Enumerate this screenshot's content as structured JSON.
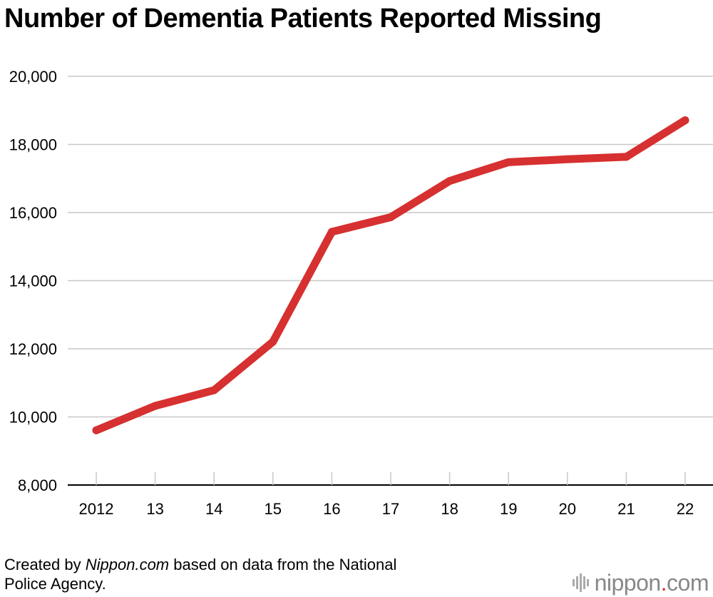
{
  "title": "Number of Dementia Patients Reported Missing",
  "source": {
    "prefix": "Created by ",
    "site": "Nippon.com",
    "suffix": " based on data from the National",
    "line2": "Police Agency."
  },
  "logo": {
    "left": "nippon",
    "dot": ".",
    "right": "com"
  },
  "colors": {
    "line": "#d63030",
    "grid": "#c8c8c8",
    "axis": "#000000"
  },
  "chart_data": {
    "type": "line",
    "title": "Number of Dementia Patients Reported Missing",
    "xlabel": "",
    "ylabel": "",
    "categories": [
      "2012",
      "13",
      "14",
      "15",
      "16",
      "17",
      "18",
      "19",
      "20",
      "21",
      "22"
    ],
    "series": [
      {
        "name": "Dementia patients reported missing",
        "values": [
          9607,
          10322,
          10783,
          12208,
          15432,
          15863,
          16927,
          17479,
          17565,
          17636,
          18709
        ]
      }
    ],
    "ylim": [
      8000,
      20000
    ],
    "yticks": [
      8000,
      10000,
      12000,
      14000,
      16000,
      18000,
      20000
    ],
    "ytick_labels": [
      "8,000",
      "10,000",
      "12,000",
      "14,000",
      "16,000",
      "18,000",
      "20,000"
    ],
    "grid": true,
    "legend": "none"
  }
}
